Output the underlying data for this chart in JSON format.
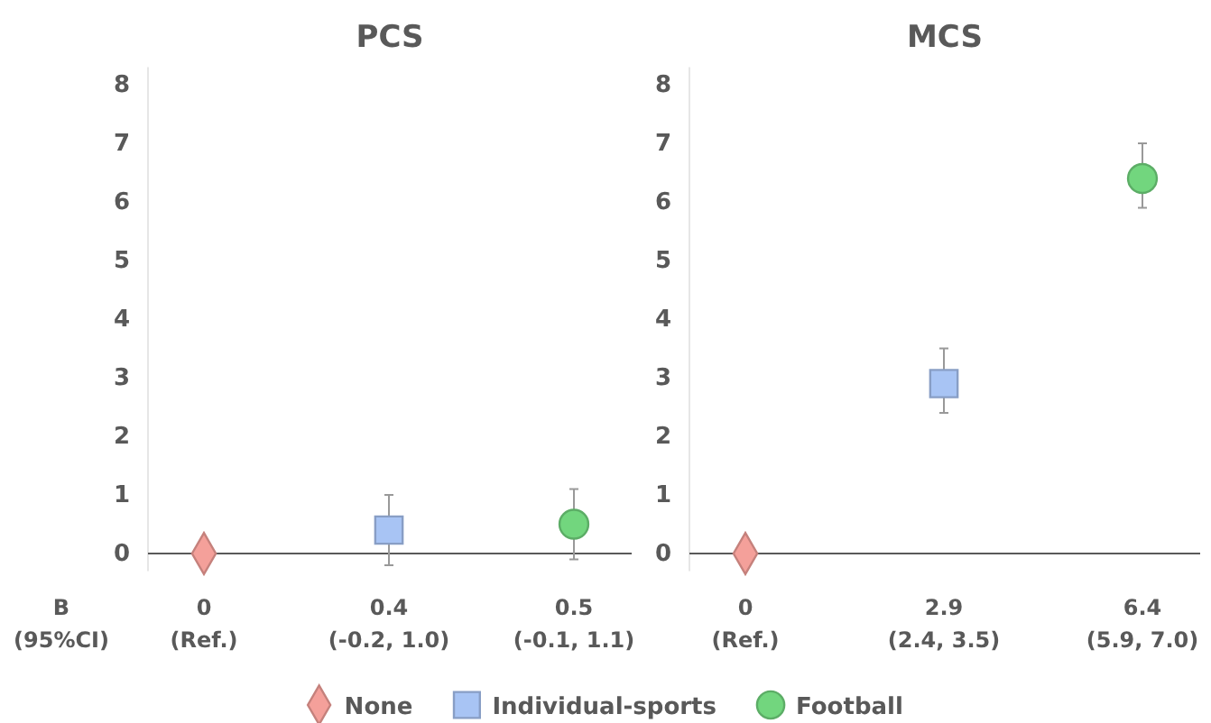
{
  "chart_data": [
    {
      "type": "scatter",
      "title": "PCS",
      "categories": [
        "0\n(Ref.)",
        "0.4\n(-0.2, 1.0)",
        "0.5\n(-0.1, 1.1)"
      ],
      "ylim": [
        -0.3,
        8.3
      ],
      "yticks": [
        0,
        1,
        2,
        3,
        4,
        5,
        6,
        7,
        8
      ],
      "grid": false,
      "legend": "bottom",
      "annotations": [
        "B\n(95%CI)"
      ],
      "series": [
        {
          "name": "None",
          "color": "#f4a09a",
          "marker": "diamond",
          "values": [
            0,
            null,
            null
          ]
        },
        {
          "name": "Individual-sports",
          "color": "#a8c4f4",
          "marker": "square",
          "values": [
            null,
            0.4,
            null
          ],
          "errors": [
            null,
            [
              -0.2,
              1.0
            ],
            null
          ]
        },
        {
          "name": "Football",
          "color": "#72d67e",
          "marker": "circle",
          "values": [
            null,
            null,
            0.5
          ],
          "errors": [
            null,
            null,
            [
              -0.1,
              1.1
            ]
          ]
        }
      ]
    },
    {
      "type": "scatter",
      "title": "MCS",
      "categories": [
        "0\n(Ref.)",
        "2.9\n(2.4, 3.5)",
        "6.4\n(5.9, 7.0)"
      ],
      "ylim": [
        -0.3,
        8.3
      ],
      "yticks": [
        0,
        1,
        2,
        3,
        4,
        5,
        6,
        7,
        8
      ],
      "grid": false,
      "series": [
        {
          "color": "#f4a09a",
          "marker": "diamond",
          "values": [
            0,
            null,
            null
          ]
        },
        {
          "color": "#a8c4f4",
          "marker": "square",
          "values": [
            null,
            2.9,
            null
          ],
          "errors": [
            null,
            [
              2.4,
              3.5
            ],
            null
          ]
        },
        {
          "color": "#72d67e",
          "marker": "circle",
          "values": [
            null,
            null,
            6.4
          ],
          "errors": [
            null,
            null,
            [
              5.9,
              7.0
            ]
          ]
        }
      ]
    }
  ]
}
